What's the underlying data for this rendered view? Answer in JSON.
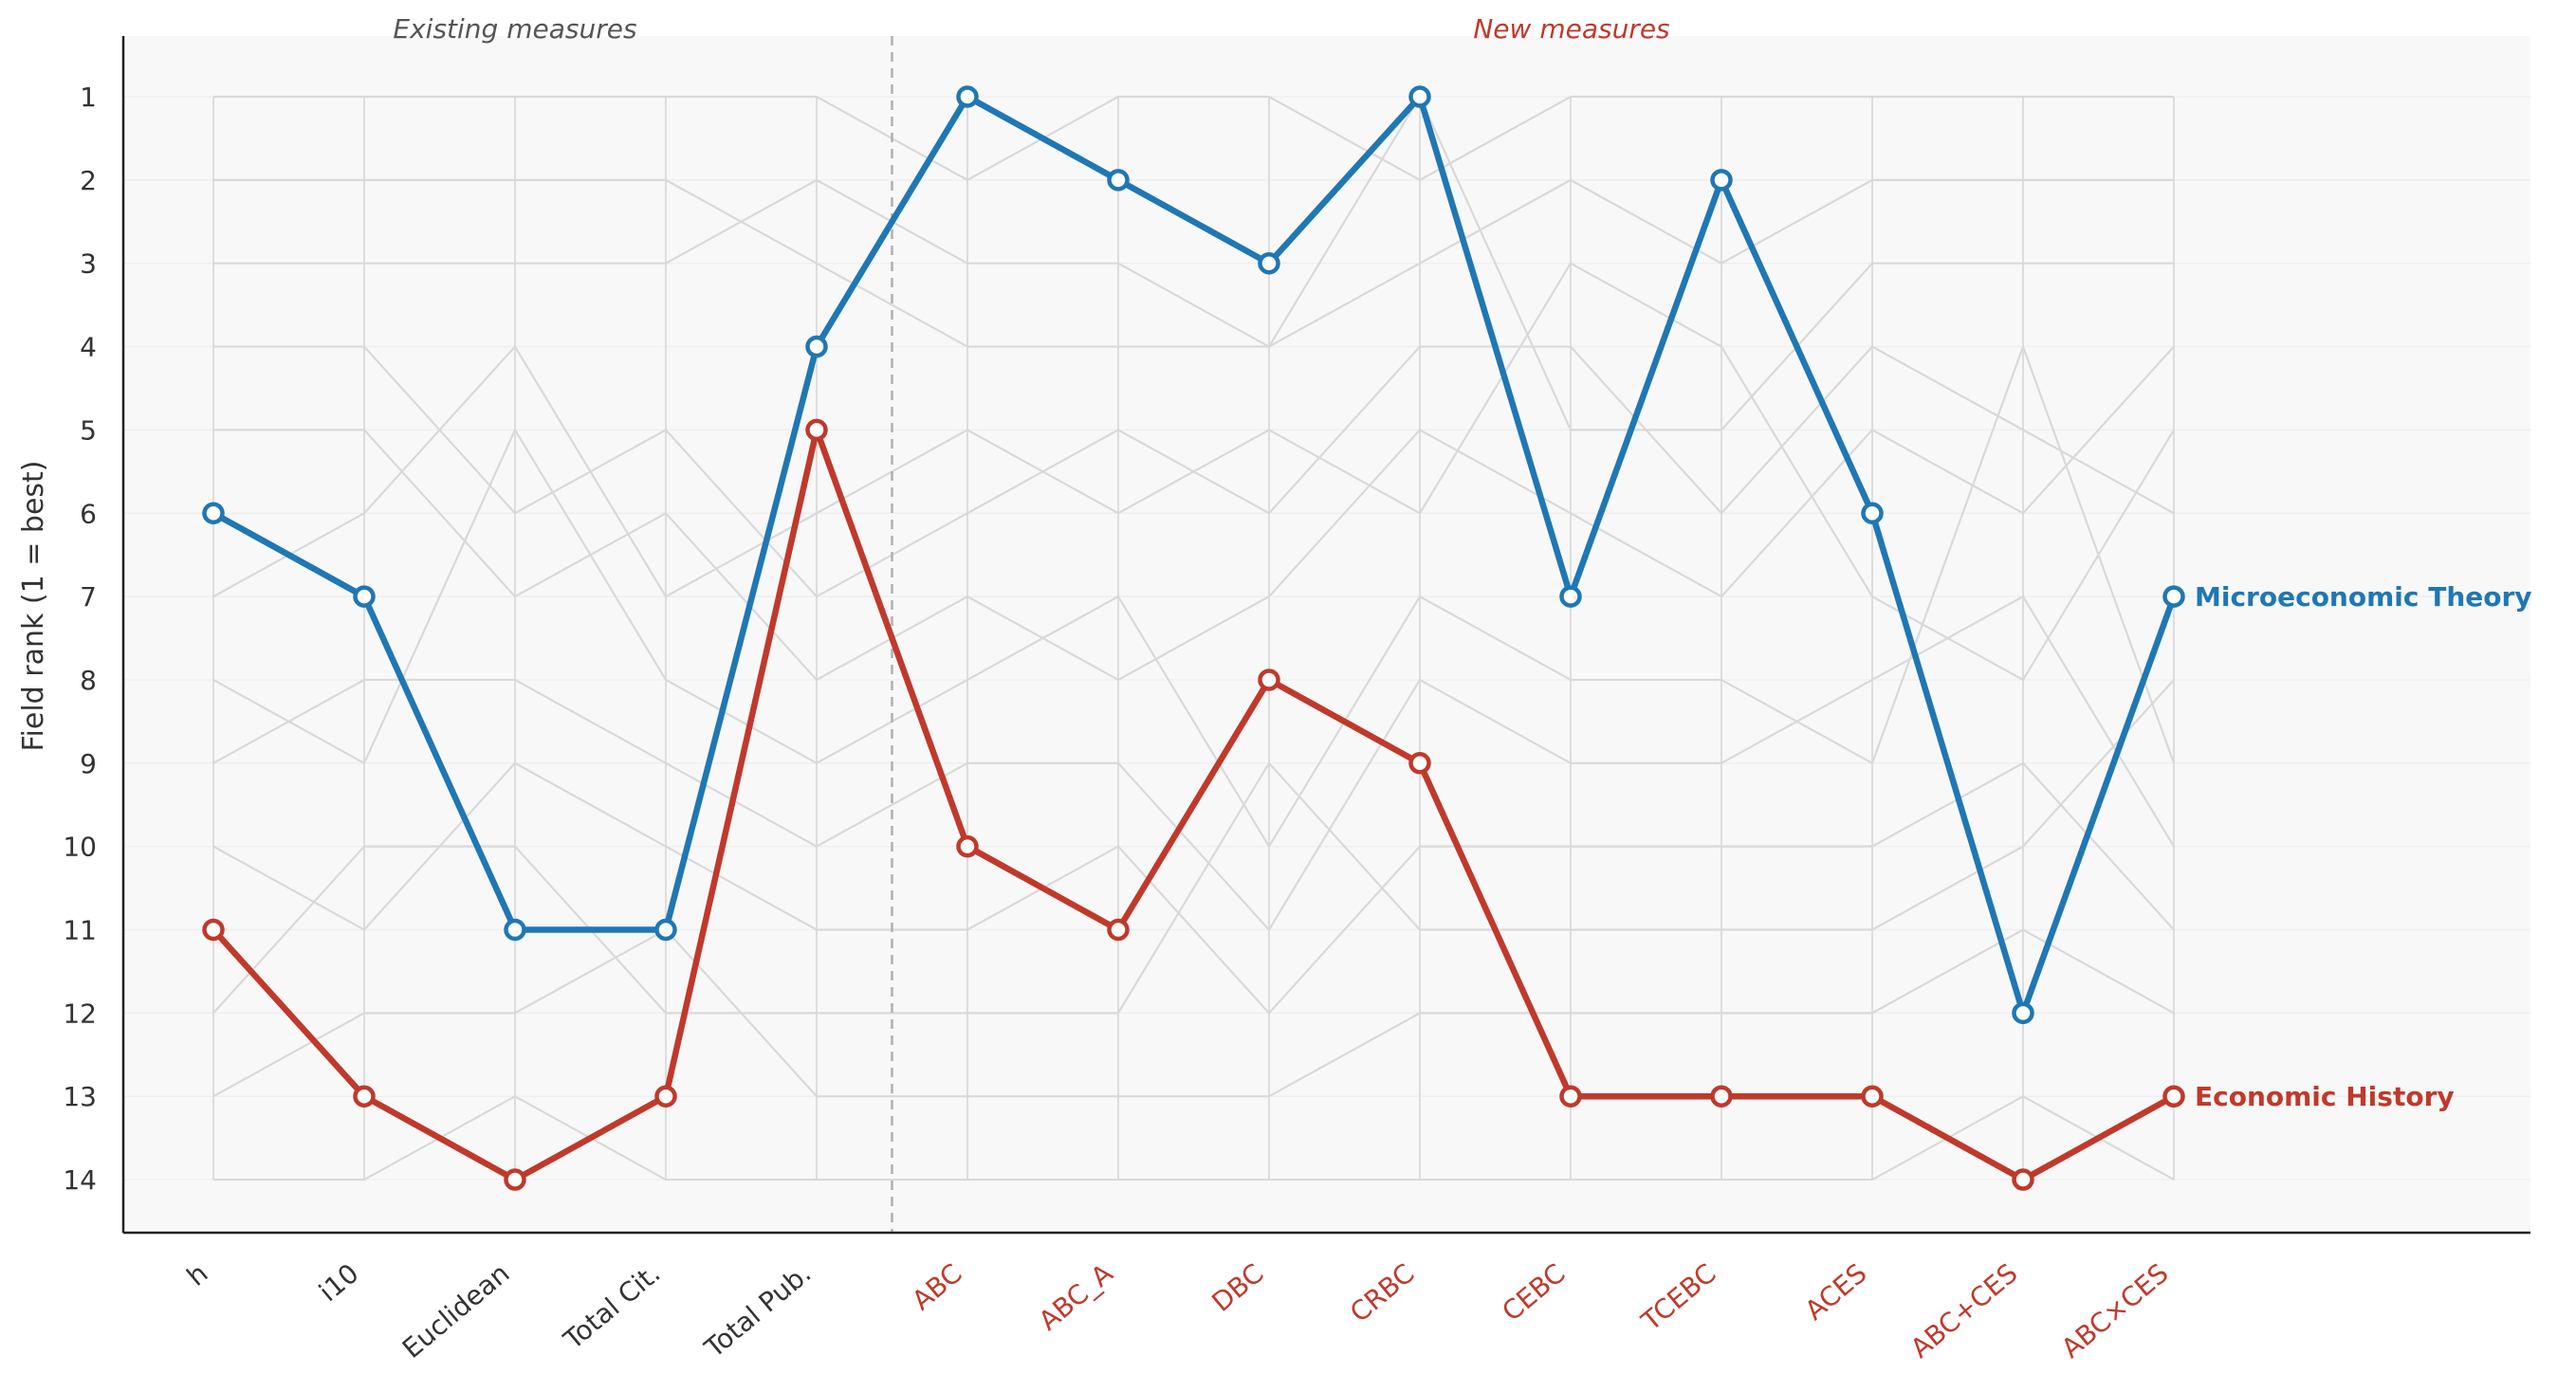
{
  "chart_data": {
    "type": "line",
    "title": "",
    "ylabel": "Field rank (1 = best)",
    "xlabel": "",
    "ylim": [
      14.7,
      0.3
    ],
    "y_ticks": [
      1,
      2,
      3,
      4,
      5,
      6,
      7,
      8,
      9,
      10,
      11,
      12,
      13,
      14
    ],
    "y_inverted": true,
    "grid": true,
    "categories": [
      "h",
      "i10",
      "Euclidean",
      "Total Cit.",
      "Total Pub.",
      "ABC",
      "ABC_A",
      "DBC",
      "CRBC",
      "CEBC",
      "TCEBC",
      "ACES",
      "ABC+CES",
      "ABC×CES"
    ],
    "category_groups": [
      {
        "label": "Existing measures",
        "color": "#555555",
        "categories": [
          "h",
          "i10",
          "Euclidean",
          "Total Cit.",
          "Total Pub."
        ]
      },
      {
        "label": "New measures",
        "color": "#c0392b",
        "categories": [
          "ABC",
          "ABC_A",
          "DBC",
          "CRBC",
          "CEBC",
          "TCEBC",
          "ACES",
          "ABC+CES",
          "ABC×CES"
        ]
      }
    ],
    "separator_after_index": 4,
    "colors": {
      "existing_label": "#333333",
      "new_label": "#c0392b",
      "background_lines": "#d9d9d9",
      "plot_background": "#f8f8f8",
      "separator": "#b0b0b0"
    },
    "highlighted_series": [
      {
        "name": "Microeconomic Theory",
        "color": "#1f77b4",
        "values": [
          6,
          7,
          11,
          11,
          4,
          1,
          2,
          3,
          1,
          7,
          2,
          6,
          12,
          7
        ]
      },
      {
        "name": "Economic History",
        "color": "#c0392b",
        "values": [
          11,
          13,
          14,
          13,
          5,
          10,
          11,
          8,
          9,
          13,
          13,
          13,
          14,
          13
        ]
      }
    ],
    "background_series": [
      [
        1,
        1,
        1,
        1,
        1,
        2,
        1,
        1,
        2,
        1,
        1,
        1,
        1,
        1
      ],
      [
        2,
        2,
        2,
        2,
        3,
        4,
        4,
        4,
        3,
        2,
        3,
        2,
        2,
        2
      ],
      [
        3,
        3,
        3,
        3,
        2,
        3,
        3,
        4,
        1,
        5,
        5,
        3,
        3,
        3
      ],
      [
        4,
        4,
        6,
        5,
        7,
        6,
        5,
        6,
        4,
        4,
        6,
        4,
        5,
        6
      ],
      [
        5,
        5,
        7,
        6,
        8,
        7,
        8,
        7,
        5,
        6,
        7,
        5,
        6,
        4
      ],
      [
        7,
        6,
        4,
        7,
        6,
        5,
        6,
        5,
        6,
        3,
        4,
        7,
        8,
        5
      ],
      [
        8,
        9,
        5,
        8,
        9,
        8,
        7,
        10,
        7,
        8,
        8,
        9,
        4,
        9
      ],
      [
        9,
        8,
        8,
        9,
        10,
        9,
        9,
        11,
        8,
        9,
        9,
        8,
        7,
        10
      ],
      [
        10,
        11,
        9,
        10,
        11,
        11,
        10,
        12,
        10,
        10,
        10,
        10,
        9,
        11
      ],
      [
        12,
        10,
        10,
        12,
        12,
        12,
        12,
        9,
        11,
        11,
        11,
        11,
        10,
        8
      ],
      [
        13,
        12,
        12,
        11,
        13,
        13,
        13,
        13,
        12,
        12,
        12,
        12,
        11,
        12
      ],
      [
        14,
        14,
        13,
        14,
        14,
        14,
        14,
        14,
        14,
        14,
        14,
        14,
        13,
        14
      ]
    ]
  }
}
